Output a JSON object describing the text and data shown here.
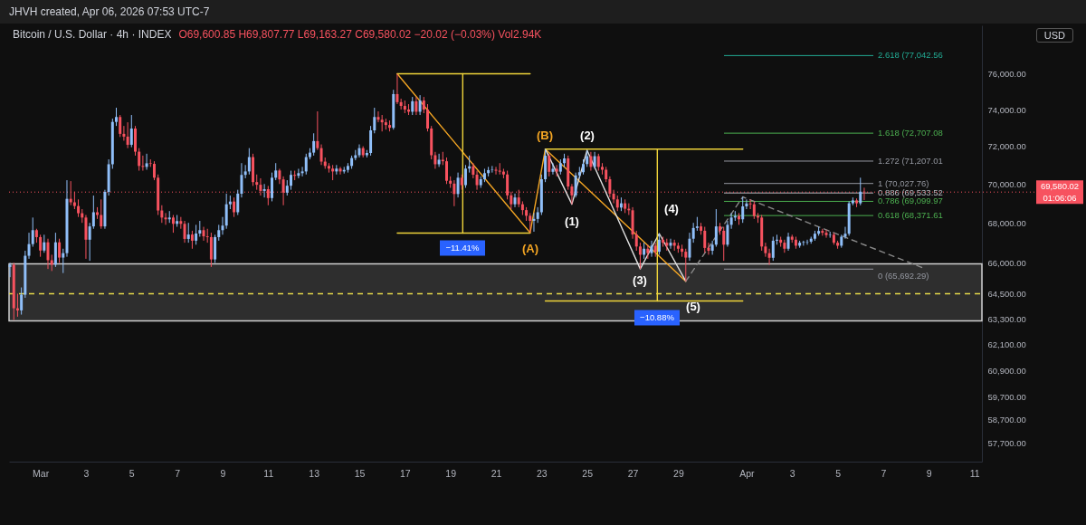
{
  "chart_data": {
    "type": "candlestick",
    "title": "Bitcoin / U.S. Dollar · 4h · INDEX",
    "subtitle": "O69,600.85 H69,807.77 L69,163.27 C69,580.02 −20.02 (−0.03%) Vol2.94K",
    "log": true,
    "xlim": [
      "2026-02-27T15:00",
      "2026-04-11T08:00"
    ],
    "xticks": [
      {
        "value": "2026-03-01",
        "label": "Mar"
      },
      {
        "value": "2026-03-03",
        "label": "3"
      },
      {
        "value": "2026-03-05",
        "label": "5"
      },
      {
        "value": "2026-03-07",
        "label": "7"
      },
      {
        "value": "2026-03-09",
        "label": "9"
      },
      {
        "value": "2026-03-11",
        "label": "11"
      },
      {
        "value": "2026-03-13",
        "label": "13"
      },
      {
        "value": "2026-03-15",
        "label": "15"
      },
      {
        "value": "2026-03-17",
        "label": "17"
      },
      {
        "value": "2026-03-19",
        "label": "19"
      },
      {
        "value": "2026-03-21",
        "label": "21"
      },
      {
        "value": "2026-03-23",
        "label": "23"
      },
      {
        "value": "2026-03-25",
        "label": "25"
      },
      {
        "value": "2026-03-27",
        "label": "27"
      },
      {
        "value": "2026-03-29",
        "label": "29"
      },
      {
        "value": "2026-04-01",
        "label": "Apr"
      },
      {
        "value": "2026-04-03",
        "label": "3"
      },
      {
        "value": "2026-04-05",
        "label": "5"
      },
      {
        "value": "2026-04-07",
        "label": "7"
      },
      {
        "value": "2026-04-09",
        "label": "9"
      },
      {
        "value": "2026-04-11",
        "label": "11"
      }
    ],
    "ylim": [
      56900,
      78800
    ],
    "yticks": [
      {
        "value": 76000,
        "label": "76,000.00"
      },
      {
        "value": 74000,
        "label": "74,000.00"
      },
      {
        "value": 72000,
        "label": "72,000.00"
      },
      {
        "value": 70000,
        "label": "70,000.00"
      },
      {
        "value": 68000,
        "label": "68,000.00"
      },
      {
        "value": 66000,
        "label": "66,000.00"
      },
      {
        "value": 64500,
        "label": "64,500.00"
      },
      {
        "value": 63300,
        "label": "63,300.00"
      },
      {
        "value": 62100,
        "label": "62,100.00"
      },
      {
        "value": 60900,
        "label": "60,900.00"
      },
      {
        "value": 59700,
        "label": "59,700.00"
      },
      {
        "value": 58700,
        "label": "58,700.00"
      },
      {
        "value": 57700,
        "label": "57,700.00"
      }
    ],
    "x": [
      "2026-02-27T16:00",
      "2026-02-27T20:00",
      "2026-02-28T00:00",
      "2026-02-28T04:00",
      "2026-02-28T08:00",
      "2026-02-28T12:00",
      "2026-02-28T16:00",
      "2026-02-28T20:00",
      "2026-03-01T00:00",
      "2026-03-01T04:00",
      "2026-03-01T08:00",
      "2026-03-01T12:00",
      "2026-03-01T16:00",
      "2026-03-01T20:00",
      "2026-03-02T00:00",
      "2026-03-02T04:00",
      "2026-03-02T08:00",
      "2026-03-02T12:00",
      "2026-03-02T16:00",
      "2026-03-02T20:00",
      "2026-03-03T00:00",
      "2026-03-03T04:00",
      "2026-03-03T08:00",
      "2026-03-03T12:00",
      "2026-03-03T16:00",
      "2026-03-03T20:00",
      "2026-03-04T00:00",
      "2026-03-04T04:00",
      "2026-03-04T08:00",
      "2026-03-04T12:00",
      "2026-03-04T16:00",
      "2026-03-04T20:00",
      "2026-03-05T00:00",
      "2026-03-05T04:00",
      "2026-03-05T08:00",
      "2026-03-05T12:00",
      "2026-03-05T16:00",
      "2026-03-05T20:00",
      "2026-03-06T00:00",
      "2026-03-06T04:00",
      "2026-03-06T08:00",
      "2026-03-06T12:00",
      "2026-03-06T16:00",
      "2026-03-06T20:00",
      "2026-03-07T00:00",
      "2026-03-07T04:00",
      "2026-03-07T08:00",
      "2026-03-07T12:00",
      "2026-03-07T16:00",
      "2026-03-07T20:00",
      "2026-03-08T00:00",
      "2026-03-08T04:00",
      "2026-03-08T08:00",
      "2026-03-08T12:00",
      "2026-03-08T16:00",
      "2026-03-08T20:00",
      "2026-03-09T00:00",
      "2026-03-09T04:00",
      "2026-03-09T08:00",
      "2026-03-09T12:00",
      "2026-03-09T16:00",
      "2026-03-09T20:00",
      "2026-03-10T00:00",
      "2026-03-10T04:00",
      "2026-03-10T08:00",
      "2026-03-10T12:00",
      "2026-03-10T16:00",
      "2026-03-10T20:00",
      "2026-03-11T00:00",
      "2026-03-11T04:00",
      "2026-03-11T08:00",
      "2026-03-11T12:00",
      "2026-03-11T16:00",
      "2026-03-11T20:00",
      "2026-03-12T00:00",
      "2026-03-12T04:00",
      "2026-03-12T08:00",
      "2026-03-12T12:00",
      "2026-03-12T16:00",
      "2026-03-12T20:00",
      "2026-03-13T00:00",
      "2026-03-13T04:00",
      "2026-03-13T08:00",
      "2026-03-13T12:00",
      "2026-03-13T16:00",
      "2026-03-13T20:00",
      "2026-03-14T00:00",
      "2026-03-14T04:00",
      "2026-03-14T08:00",
      "2026-03-14T12:00",
      "2026-03-14T16:00",
      "2026-03-14T20:00",
      "2026-03-15T00:00",
      "2026-03-15T04:00",
      "2026-03-15T08:00",
      "2026-03-15T12:00",
      "2026-03-15T16:00",
      "2026-03-15T20:00",
      "2026-03-16T00:00",
      "2026-03-16T04:00",
      "2026-03-16T08:00",
      "2026-03-16T12:00",
      "2026-03-16T16:00",
      "2026-03-16T20:00",
      "2026-03-17T00:00",
      "2026-03-17T04:00",
      "2026-03-17T08:00",
      "2026-03-17T12:00",
      "2026-03-17T16:00",
      "2026-03-17T20:00",
      "2026-03-18T00:00",
      "2026-03-18T04:00",
      "2026-03-18T08:00",
      "2026-03-18T12:00",
      "2026-03-18T16:00",
      "2026-03-18T20:00",
      "2026-03-19T00:00",
      "2026-03-19T04:00",
      "2026-03-19T08:00",
      "2026-03-19T12:00",
      "2026-03-19T16:00",
      "2026-03-19T20:00",
      "2026-03-20T00:00",
      "2026-03-20T04:00",
      "2026-03-20T08:00",
      "2026-03-20T12:00",
      "2026-03-20T16:00",
      "2026-03-20T20:00",
      "2026-03-21T00:00",
      "2026-03-21T04:00",
      "2026-03-21T08:00",
      "2026-03-21T12:00",
      "2026-03-21T16:00",
      "2026-03-21T20:00",
      "2026-03-22T00:00",
      "2026-03-22T04:00",
      "2026-03-22T08:00",
      "2026-03-22T12:00",
      "2026-03-22T16:00",
      "2026-03-22T20:00",
      "2026-03-23T00:00",
      "2026-03-23T04:00",
      "2026-03-23T08:00",
      "2026-03-23T12:00",
      "2026-03-23T16:00",
      "2026-03-23T20:00",
      "2026-03-24T00:00",
      "2026-03-24T04:00",
      "2026-03-24T08:00",
      "2026-03-24T12:00",
      "2026-03-24T16:00",
      "2026-03-24T20:00",
      "2026-03-25T00:00",
      "2026-03-25T04:00",
      "2026-03-25T08:00",
      "2026-03-25T12:00",
      "2026-03-25T16:00",
      "2026-03-25T20:00",
      "2026-03-26T00:00",
      "2026-03-26T04:00",
      "2026-03-26T08:00",
      "2026-03-26T12:00",
      "2026-03-26T16:00",
      "2026-03-26T20:00",
      "2026-03-27T00:00",
      "2026-03-27T04:00",
      "2026-03-27T08:00",
      "2026-03-27T12:00",
      "2026-03-27T16:00",
      "2026-03-27T20:00",
      "2026-03-28T00:00",
      "2026-03-28T04:00",
      "2026-03-28T08:00",
      "2026-03-28T12:00",
      "2026-03-28T16:00",
      "2026-03-28T20:00",
      "2026-03-29T00:00",
      "2026-03-29T04:00",
      "2026-03-29T08:00",
      "2026-03-29T12:00",
      "2026-03-29T16:00",
      "2026-03-29T20:00",
      "2026-03-30T00:00",
      "2026-03-30T04:00",
      "2026-03-30T08:00",
      "2026-03-30T12:00",
      "2026-03-30T16:00",
      "2026-03-30T20:00",
      "2026-03-31T00:00",
      "2026-03-31T04:00",
      "2026-03-31T08:00",
      "2026-03-31T12:00",
      "2026-03-31T16:00",
      "2026-03-31T20:00",
      "2026-04-01T00:00",
      "2026-04-01T04:00",
      "2026-04-01T08:00",
      "2026-04-01T12:00",
      "2026-04-01T16:00",
      "2026-04-01T20:00",
      "2026-04-02T00:00",
      "2026-04-02T04:00",
      "2026-04-02T08:00",
      "2026-04-02T12:00",
      "2026-04-02T16:00",
      "2026-04-02T20:00",
      "2026-04-03T00:00",
      "2026-04-03T04:00",
      "2026-04-03T08:00",
      "2026-04-03T12:00",
      "2026-04-03T16:00",
      "2026-04-03T20:00",
      "2026-04-04T00:00",
      "2026-04-04T04:00",
      "2026-04-04T08:00",
      "2026-04-04T12:00",
      "2026-04-04T16:00",
      "2026-04-04T20:00",
      "2026-04-05T00:00",
      "2026-04-05T04:00",
      "2026-04-05T08:00",
      "2026-04-05T12:00",
      "2026-04-05T16:00",
      "2026-04-05T20:00",
      "2026-04-06T00:00",
      "2026-04-06T04:00"
    ],
    "ohlc": [
      [
        65800,
        66000,
        65300,
        65900
      ],
      [
        65900,
        66000,
        63250,
        63800
      ],
      [
        63800,
        64500,
        63400,
        63700
      ],
      [
        63700,
        64800,
        63500,
        64450
      ],
      [
        64450,
        66600,
        64300,
        66350
      ],
      [
        66350,
        67500,
        66200,
        66930
      ],
      [
        66930,
        68270,
        66800,
        67630
      ],
      [
        67630,
        67700,
        67000,
        67280
      ],
      [
        67280,
        67400,
        66300,
        66610
      ],
      [
        66610,
        67400,
        66500,
        67020
      ],
      [
        67020,
        67200,
        65700,
        66130
      ],
      [
        66130,
        66400,
        65600,
        65910
      ],
      [
        65910,
        67500,
        65800,
        67020
      ],
      [
        67020,
        67200,
        66000,
        66260
      ],
      [
        66260,
        66700,
        65500,
        66480
      ],
      [
        66480,
        70200,
        66300,
        69230
      ],
      [
        69230,
        70150,
        68900,
        69050
      ],
      [
        69050,
        69600,
        68700,
        68860
      ],
      [
        68860,
        69200,
        68300,
        68490
      ],
      [
        68490,
        68700,
        68000,
        68270
      ],
      [
        68270,
        68400,
        66200,
        67150
      ],
      [
        67150,
        68000,
        66100,
        67820
      ],
      [
        67820,
        69400,
        67700,
        68540
      ],
      [
        68540,
        68800,
        68200,
        68400
      ],
      [
        68400,
        69200,
        67700,
        67820
      ],
      [
        67820,
        69700,
        67700,
        69590
      ],
      [
        69590,
        71300,
        69400,
        71040
      ],
      [
        71040,
        73500,
        70800,
        73320
      ],
      [
        73320,
        74100,
        73100,
        73590
      ],
      [
        73590,
        73700,
        72500,
        72670
      ],
      [
        72670,
        73100,
        72300,
        72520
      ],
      [
        72520,
        73300,
        71900,
        72080
      ],
      [
        72080,
        73700,
        71950,
        72960
      ],
      [
        72960,
        73100,
        71500,
        71710
      ],
      [
        71710,
        71900,
        70700,
        70950
      ],
      [
        70950,
        71500,
        70700,
        70900
      ],
      [
        70900,
        71600,
        70750,
        71090
      ],
      [
        71090,
        71300,
        70900,
        71060
      ],
      [
        71060,
        71200,
        70200,
        70330
      ],
      [
        70330,
        70500,
        68400,
        68630
      ],
      [
        68630,
        68900,
        68000,
        68270
      ],
      [
        68270,
        68500,
        67900,
        68180
      ],
      [
        68180,
        68600,
        68000,
        68270
      ],
      [
        68270,
        68400,
        67500,
        67950
      ],
      [
        67950,
        68400,
        67800,
        68090
      ],
      [
        68090,
        68300,
        67700,
        67950
      ],
      [
        67950,
        68100,
        67000,
        67190
      ],
      [
        67190,
        68000,
        67000,
        67410
      ],
      [
        67410,
        67600,
        66700,
        67100
      ],
      [
        67100,
        67900,
        66900,
        67460
      ],
      [
        67460,
        68100,
        67300,
        67630
      ],
      [
        67630,
        67800,
        67100,
        67320
      ],
      [
        67320,
        67700,
        67000,
        67280
      ],
      [
        67280,
        67500,
        65800,
        66170
      ],
      [
        66170,
        67400,
        66000,
        67280
      ],
      [
        67280,
        67900,
        67100,
        67630
      ],
      [
        67630,
        68300,
        67400,
        67860
      ],
      [
        67860,
        69500,
        67700,
        68950
      ],
      [
        68950,
        69400,
        68700,
        69090
      ],
      [
        69090,
        69300,
        68300,
        68540
      ],
      [
        68540,
        69700,
        68400,
        69500
      ],
      [
        69500,
        71100,
        69300,
        70480
      ],
      [
        70480,
        71000,
        70300,
        70660
      ],
      [
        70660,
        71900,
        70500,
        71420
      ],
      [
        71420,
        71600,
        69900,
        70100
      ],
      [
        70100,
        70500,
        69700,
        69960
      ],
      [
        69960,
        70300,
        69400,
        69640
      ],
      [
        69640,
        70000,
        69300,
        69730
      ],
      [
        69730,
        69900,
        68900,
        69270
      ],
      [
        69270,
        70600,
        69100,
        70330
      ],
      [
        70330,
        71100,
        70200,
        70710
      ],
      [
        70710,
        70800,
        70000,
        70240
      ],
      [
        70240,
        70400,
        68900,
        69550
      ],
      [
        69550,
        70200,
        69400,
        69910
      ],
      [
        69910,
        70700,
        69700,
        70480
      ],
      [
        70480,
        70700,
        70200,
        70430
      ],
      [
        70430,
        70800,
        70300,
        70570
      ],
      [
        70570,
        70900,
        70400,
        70660
      ],
      [
        70660,
        71600,
        70500,
        71420
      ],
      [
        71420,
        71900,
        71300,
        71660
      ],
      [
        71660,
        72700,
        71500,
        72280
      ],
      [
        72280,
        73900,
        71800,
        71900
      ],
      [
        71900,
        72100,
        71000,
        71180
      ],
      [
        71180,
        71400,
        70800,
        70950
      ],
      [
        70950,
        71100,
        70600,
        70810
      ],
      [
        70810,
        71000,
        70200,
        70660
      ],
      [
        70660,
        71000,
        70500,
        70810
      ],
      [
        70810,
        70900,
        70500,
        70660
      ],
      [
        70660,
        70900,
        70550,
        70740
      ],
      [
        70740,
        71100,
        70600,
        70950
      ],
      [
        70950,
        71500,
        70800,
        71370
      ],
      [
        71370,
        71800,
        71250,
        71520
      ],
      [
        71520,
        72100,
        71400,
        71900
      ],
      [
        71900,
        72000,
        71400,
        71520
      ],
      [
        71520,
        71800,
        71400,
        71640
      ],
      [
        71640,
        73100,
        71500,
        72860
      ],
      [
        72860,
        74100,
        72700,
        73590
      ],
      [
        73590,
        73900,
        73300,
        73440
      ],
      [
        73440,
        73700,
        72800,
        73300
      ],
      [
        73300,
        73500,
        72900,
        73150
      ],
      [
        73150,
        73400,
        72800,
        73000
      ],
      [
        73000,
        75100,
        72900,
        74860
      ],
      [
        74860,
        76000,
        74300,
        74410
      ],
      [
        74410,
        74600,
        74000,
        74200
      ],
      [
        74200,
        74500,
        73800,
        74000
      ],
      [
        74000,
        74300,
        73700,
        73880
      ],
      [
        73880,
        74700,
        73700,
        74460
      ],
      [
        74460,
        74700,
        73700,
        73880
      ],
      [
        73880,
        74800,
        73700,
        74500
      ],
      [
        74500,
        74700,
        73800,
        74000
      ],
      [
        74000,
        74300,
        72800,
        72960
      ],
      [
        72960,
        73100,
        71300,
        71520
      ],
      [
        71520,
        71700,
        70800,
        71040
      ],
      [
        71040,
        71600,
        70900,
        71280
      ],
      [
        71280,
        71700,
        71000,
        71200
      ],
      [
        71200,
        71400,
        70000,
        70170
      ],
      [
        70170,
        70400,
        69800,
        70020
      ],
      [
        70020,
        70200,
        68850,
        69480
      ],
      [
        69480,
        70600,
        69300,
        70330
      ],
      [
        70330,
        70500,
        69700,
        69940
      ],
      [
        69940,
        71000,
        69800,
        70810
      ],
      [
        70810,
        71500,
        70600,
        70930
      ],
      [
        70930,
        71100,
        70300,
        70490
      ],
      [
        70490,
        70700,
        69700,
        69940
      ],
      [
        69940,
        70400,
        69800,
        70250
      ],
      [
        70250,
        70800,
        70100,
        70570
      ],
      [
        70570,
        70900,
        70400,
        70730
      ],
      [
        70730,
        70950,
        70600,
        70750
      ],
      [
        70750,
        70900,
        70500,
        70700
      ],
      [
        70700,
        71100,
        70500,
        70650
      ],
      [
        70650,
        70800,
        70300,
        70500
      ],
      [
        70500,
        70700,
        69200,
        69410
      ],
      [
        69410,
        69600,
        68700,
        68950
      ],
      [
        68950,
        69500,
        68800,
        69300
      ],
      [
        69300,
        69700,
        68800,
        68950
      ],
      [
        68950,
        69100,
        68400,
        68650
      ],
      [
        68650,
        68800,
        68100,
        68360
      ],
      [
        68360,
        68500,
        67500,
        68100
      ],
      [
        68100,
        68500,
        67550,
        68200
      ],
      [
        68200,
        68800,
        68000,
        68540
      ],
      [
        68540,
        70500,
        68400,
        70250
      ],
      [
        70250,
        71850,
        70100,
        71500
      ],
      [
        71500,
        71600,
        70400,
        70640
      ],
      [
        70640,
        71100,
        70500,
        70800
      ],
      [
        70800,
        71000,
        70400,
        70650
      ],
      [
        70650,
        71300,
        70500,
        71100
      ],
      [
        71100,
        71600,
        70900,
        71350
      ],
      [
        71350,
        71500,
        69700,
        69870
      ],
      [
        69870,
        70000,
        68950,
        69410
      ],
      [
        69410,
        70600,
        69300,
        70450
      ],
      [
        70450,
        70900,
        70300,
        70620
      ],
      [
        70620,
        71300,
        70500,
        71050
      ],
      [
        71050,
        71790,
        70900,
        71470
      ],
      [
        71470,
        71700,
        70700,
        70900
      ],
      [
        70900,
        71700,
        70800,
        71470
      ],
      [
        71470,
        71600,
        70700,
        70900
      ],
      [
        70900,
        71100,
        70500,
        70750
      ],
      [
        70750,
        70900,
        70100,
        70250
      ],
      [
        70250,
        70400,
        69300,
        69500
      ],
      [
        69500,
        69700,
        69000,
        69200
      ],
      [
        69200,
        69400,
        68600,
        68780
      ],
      [
        68780,
        69300,
        68600,
        69000
      ],
      [
        69000,
        69200,
        68500,
        68720
      ],
      [
        68720,
        69000,
        68400,
        68640
      ],
      [
        68640,
        68800,
        67200,
        67410
      ],
      [
        67410,
        67600,
        66600,
        66810
      ],
      [
        66810,
        67000,
        65700,
        66400
      ],
      [
        66400,
        67000,
        66200,
        66700
      ],
      [
        66700,
        66900,
        66200,
        66480
      ],
      [
        66480,
        67100,
        66300,
        66850
      ],
      [
        66850,
        67000,
        66300,
        66550
      ],
      [
        66550,
        67460,
        66400,
        67150
      ],
      [
        67150,
        67300,
        66800,
        67000
      ],
      [
        67000,
        67200,
        66600,
        66850
      ],
      [
        66850,
        67200,
        66700,
        67000
      ],
      [
        67000,
        67150,
        66600,
        66850
      ],
      [
        66850,
        67000,
        66500,
        66700
      ],
      [
        66700,
        66900,
        66300,
        66550
      ],
      [
        66550,
        66700,
        65100,
        66260
      ],
      [
        66260,
        67500,
        66100,
        67200
      ],
      [
        67200,
        68000,
        67000,
        67740
      ],
      [
        67740,
        68300,
        67600,
        67820
      ],
      [
        67820,
        68000,
        67400,
        67600
      ],
      [
        67600,
        67800,
        66500,
        66740
      ],
      [
        66740,
        67000,
        66400,
        66600
      ],
      [
        66600,
        67100,
        66400,
        66900
      ],
      [
        66900,
        68700,
        66800,
        67820
      ],
      [
        67820,
        68000,
        67400,
        67600
      ],
      [
        67600,
        67800,
        66100,
        66900
      ],
      [
        66900,
        68100,
        66800,
        67900
      ],
      [
        67900,
        68500,
        67700,
        68270
      ],
      [
        68270,
        68600,
        68100,
        68350
      ],
      [
        68350,
        68500,
        67900,
        68180
      ],
      [
        68180,
        69330,
        68000,
        68840
      ],
      [
        68840,
        69200,
        68700,
        68990
      ],
      [
        68990,
        69200,
        68700,
        68950
      ],
      [
        68950,
        69100,
        68200,
        68350
      ],
      [
        68350,
        68500,
        68000,
        68270
      ],
      [
        68270,
        68400,
        66600,
        66810
      ],
      [
        66810,
        67000,
        66300,
        66480
      ],
      [
        66480,
        66700,
        65900,
        66250
      ],
      [
        66250,
        67300,
        66100,
        67100
      ],
      [
        67100,
        67400,
        66900,
        67150
      ],
      [
        67150,
        67300,
        66800,
        67000
      ],
      [
        67000,
        67150,
        66500,
        66700
      ],
      [
        66700,
        67500,
        66600,
        67300
      ],
      [
        67300,
        67400,
        67000,
        67150
      ],
      [
        67150,
        67300,
        66700,
        66850
      ],
      [
        66850,
        67100,
        66750,
        67000
      ],
      [
        67000,
        67100,
        66850,
        67030
      ],
      [
        67030,
        67150,
        66900,
        67050
      ],
      [
        67050,
        67300,
        66950,
        67200
      ],
      [
        67200,
        67600,
        67100,
        67450
      ],
      [
        67450,
        67800,
        67350,
        67590
      ],
      [
        67590,
        67700,
        67350,
        67500
      ],
      [
        67500,
        67650,
        67250,
        67380
      ],
      [
        67380,
        67550,
        67250,
        67400
      ],
      [
        67400,
        67500,
        66900,
        67000
      ],
      [
        67000,
        67100,
        66700,
        66850
      ],
      [
        66850,
        67400,
        66750,
        67300
      ],
      [
        67300,
        67800,
        67200,
        67450
      ],
      [
        67450,
        69100,
        67350,
        69000
      ],
      [
        69000,
        69300,
        68900,
        69150
      ],
      [
        69150,
        69250,
        68800,
        69000
      ],
      [
        69000,
        70330,
        68900,
        69600
      ],
      [
        69600.85,
        69807.77,
        69163.27,
        69580.02
      ]
    ],
    "colors": [
      "#90bff9",
      "#f7525f",
      "#f7525f",
      "#90bff9",
      "#90bff9",
      "#90bff9",
      "#90bff9",
      "#f7525f",
      "#f7525f",
      "#90bff9",
      "#f7525f",
      "#f7525f",
      "#90bff9",
      "#f7525f",
      "#90bff9",
      "#90bff9",
      "#f7525f",
      "#f7525f",
      "#f7525f",
      "#f7525f",
      "#f7525f",
      "#90bff9",
      "#90bff9",
      "#f7525f",
      "#f7525f",
      "#90bff9",
      "#90bff9",
      "#90bff9",
      "#90bff9",
      "#f7525f",
      "#f7525f",
      "#f7525f",
      "#90bff9",
      "#f7525f",
      "#f7525f",
      "#f7525f",
      "#90bff9",
      "#f7525f",
      "#f7525f",
      "#f7525f",
      "#f7525f",
      "#f7525f",
      "#90bff9",
      "#f7525f",
      "#90bff9",
      "#f7525f",
      "#f7525f",
      "#90bff9",
      "#f7525f",
      "#90bff9",
      "#90bff9",
      "#f7525f",
      "#f7525f",
      "#f7525f",
      "#90bff9",
      "#90bff9",
      "#90bff9",
      "#90bff9",
      "#90bff9",
      "#f7525f",
      "#90bff9",
      "#90bff9",
      "#90bff9",
      "#90bff9",
      "#f7525f",
      "#f7525f",
      "#f7525f",
      "#90bff9",
      "#f7525f",
      "#90bff9",
      "#90bff9",
      "#f7525f",
      "#f7525f",
      "#90bff9",
      "#90bff9",
      "#f7525f",
      "#90bff9",
      "#90bff9",
      "#90bff9",
      "#90bff9",
      "#90bff9",
      "#f7525f",
      "#f7525f",
      "#f7525f",
      "#f7525f",
      "#f7525f",
      "#90bff9",
      "#f7525f",
      "#90bff9",
      "#90bff9",
      "#90bff9",
      "#90bff9",
      "#90bff9",
      "#f7525f",
      "#90bff9",
      "#90bff9",
      "#90bff9",
      "#f7525f",
      "#f7525f",
      "#f7525f",
      "#f7525f",
      "#90bff9",
      "#f7525f",
      "#f7525f",
      "#f7525f",
      "#f7525f",
      "#90bff9",
      "#f7525f",
      "#90bff9",
      "#f7525f",
      "#f7525f",
      "#f7525f",
      "#f7525f",
      "#90bff9",
      "#f7525f",
      "#f7525f",
      "#f7525f",
      "#f7525f",
      "#90bff9",
      "#f7525f",
      "#90bff9",
      "#90bff9",
      "#f7525f",
      "#f7525f",
      "#90bff9",
      "#90bff9",
      "#90bff9",
      "#90bff9",
      "#f7525f",
      "#f7525f",
      "#f7525f",
      "#f7525f",
      "#f7525f",
      "#90bff9",
      "#f7525f",
      "#f7525f",
      "#f7525f",
      "#f7525f",
      "#90bff9",
      "#90bff9",
      "#90bff9",
      "#90bff9",
      "#f7525f",
      "#90bff9",
      "#f7525f",
      "#90bff9",
      "#90bff9",
      "#f7525f",
      "#f7525f",
      "#90bff9",
      "#90bff9",
      "#90bff9",
      "#90bff9",
      "#f7525f",
      "#90bff9",
      "#f7525f",
      "#f7525f",
      "#f7525f",
      "#f7525f",
      "#f7525f",
      "#f7525f",
      "#90bff9",
      "#f7525f",
      "#f7525f",
      "#f7525f",
      "#f7525f",
      "#f7525f",
      "#90bff9",
      "#f7525f",
      "#90bff9",
      "#f7525f",
      "#90bff9",
      "#f7525f",
      "#f7525f",
      "#90bff9",
      "#f7525f",
      "#f7525f",
      "#f7525f",
      "#f7525f",
      "#90bff9",
      "#90bff9",
      "#90bff9",
      "#f7525f",
      "#f7525f",
      "#f7525f",
      "#90bff9",
      "#90bff9",
      "#f7525f",
      "#f7525f",
      "#90bff9",
      "#90bff9",
      "#90bff9",
      "#f7525f",
      "#90bff9",
      "#90bff9",
      "#f7525f",
      "#f7525f",
      "#f7525f",
      "#f7525f",
      "#f7525f",
      "#f7525f",
      "#90bff9",
      "#90bff9",
      "#f7525f",
      "#f7525f",
      "#90bff9",
      "#f7525f",
      "#f7525f",
      "#90bff9",
      "#90bff9",
      "#90bff9",
      "#90bff9",
      "#90bff9",
      "#90bff9",
      "#f7525f",
      "#f7525f",
      "#90bff9",
      "#f7525f",
      "#f7525f",
      "#90bff9",
      "#90bff9",
      "#90bff9",
      "#90bff9",
      "#f7525f",
      "#90bff9",
      "#f7525f"
    ],
    "series": [
      {
        "type": "line",
        "color": "#f5a623",
        "x": [
          "2026-03-16T16:00",
          "2026-03-22T12:00",
          "2026-03-23T04:00",
          "2026-03-29T08:00"
        ],
        "values": [
          76000,
          67500,
          71850,
          65100
        ]
      },
      {
        "type": "line",
        "color": "#e0e0e0",
        "x": [
          "2026-03-23T04:00",
          "2026-03-24T08:00",
          "2026-03-25T00:00",
          "2026-03-27T08:00",
          "2026-03-28T04:00",
          "2026-03-29T08:00"
        ],
        "values": [
          71850,
          68950,
          71790,
          65700,
          67460,
          65100
        ]
      },
      {
        "type": "line",
        "color": "#8a8a8a",
        "line_style": "dashed",
        "x": [
          "2026-03-29T08:00",
          "2026-03-31T20:00",
          "2026-04-08T18:00"
        ],
        "values": [
          65100,
          69330,
          65750
        ]
      },
      {
        "type": "line",
        "color": "#f0d43a",
        "x": [
          "2026-03-16T16:00",
          "2026-03-22T12:00"
        ],
        "values": [
          76000,
          76000
        ]
      },
      {
        "type": "line",
        "color": "#f0d43a",
        "x": [
          "2026-03-16T16:00",
          "2026-03-22T12:00"
        ],
        "values": [
          67480,
          67480
        ]
      },
      {
        "type": "line",
        "color": "#f0d43a",
        "x": [
          "2026-03-19T13:00",
          "2026-03-19T13:00"
        ],
        "values": [
          76000,
          67480
        ]
      },
      {
        "type": "line",
        "color": "#f0d43a",
        "x": [
          "2026-03-23T04:00",
          "2026-03-31T20:00"
        ],
        "values": [
          71850,
          71850
        ]
      },
      {
        "type": "line",
        "color": "#f0d43a",
        "x": [
          "2026-03-23T04:00",
          "2026-03-31T20:00"
        ],
        "values": [
          64150,
          64150
        ]
      },
      {
        "type": "line",
        "color": "#f0d43a",
        "x": [
          "2026-03-28T02:00",
          "2026-03-28T02:00"
        ],
        "values": [
          71850,
          64150
        ]
      }
    ],
    "bands": [
      {
        "axis": "y",
        "from": 63200,
        "to": 65950,
        "color": "#2e2e2e"
      }
    ],
    "ref_lines": [
      {
        "axis": "y",
        "value": 77042.56,
        "label": "2.618 (77,042.56",
        "color": "#22ab94"
      },
      {
        "axis": "y",
        "value": 72707.08,
        "label": "1.618 (72,707.08",
        "color": "#4caf50"
      },
      {
        "axis": "y",
        "value": 71207.01,
        "label": "1.272 (71,207.01",
        "color": "#9598a1"
      },
      {
        "axis": "y",
        "value": 70027.76,
        "label": "1 (70,027.76)",
        "color": "#9598a1"
      },
      {
        "axis": "y",
        "value": 69533.52,
        "label": "0.886 (69,533.52",
        "color": "#b8bcc4"
      },
      {
        "axis": "y",
        "value": 69099.97,
        "label": "0.786 (69,099.97",
        "color": "#4caf50"
      },
      {
        "axis": "y",
        "value": 68371.61,
        "label": "0.618 (68,371.61",
        "color": "#4caf50"
      },
      {
        "axis": "y",
        "value": 65692.29,
        "label": "0 (65,692.29)",
        "color": "#9598a1"
      },
      {
        "axis": "y",
        "value": 69580.02,
        "label": "69,580.02",
        "color": "#f7525f",
        "line_style": "dotted"
      },
      {
        "axis": "y",
        "value": 64500,
        "label": null,
        "color": "#e5d84a",
        "line_style": "dashed"
      }
    ],
    "annotations": [
      "JHVH created, Apr 06, 2026 07:53 UTC-7",
      "USD",
      "01:06:06",
      "−11.41%",
      "−10.88%",
      "(A)",
      "(B)",
      "(1)",
      "(2)",
      "(3)",
      "(4)",
      "(5)"
    ]
  }
}
